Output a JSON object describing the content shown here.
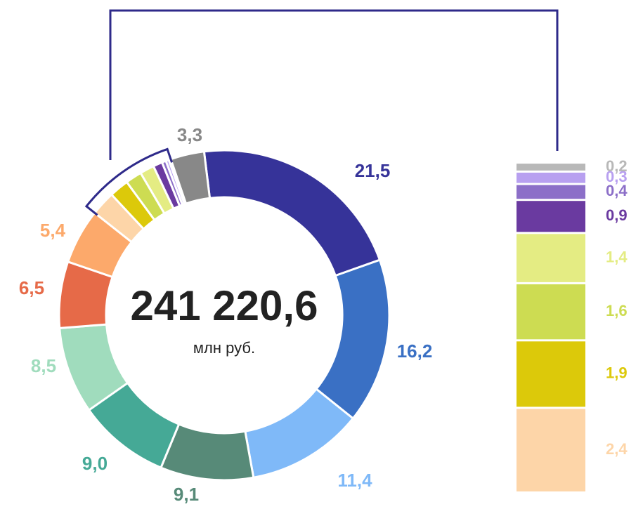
{
  "chart_data": {
    "type": "donut",
    "center_value": "241 220,6",
    "center_unit": "млн руб.",
    "values": [
      21.5,
      16.2,
      11.4,
      9.1,
      9.0,
      8.5,
      6.5,
      5.4,
      2.4,
      1.9,
      1.6,
      1.4,
      0.9,
      0.4,
      0.3,
      0.2,
      3.3
    ],
    "value_labels": [
      "21,5",
      "16,2",
      "11,4",
      "9,1",
      "9,0",
      "8,5",
      "6,5",
      "5,4",
      "2,4",
      "1,9",
      "1,6",
      "1,4",
      "0,9",
      "0,4",
      "0,3",
      "0,2",
      "3,3"
    ],
    "colors": [
      "#363399",
      "#3a70c4",
      "#7fb9f8",
      "#578a78",
      "#45a996",
      "#a0dcbd",
      "#e66a48",
      "#fca96b",
      "#fdd5a8",
      "#dcc90a",
      "#cddc52",
      "#e4ec83",
      "#6a3aa0",
      "#8c6fc8",
      "#b8a0f0",
      "#b8b8b8",
      "#888888"
    ]
  }
}
